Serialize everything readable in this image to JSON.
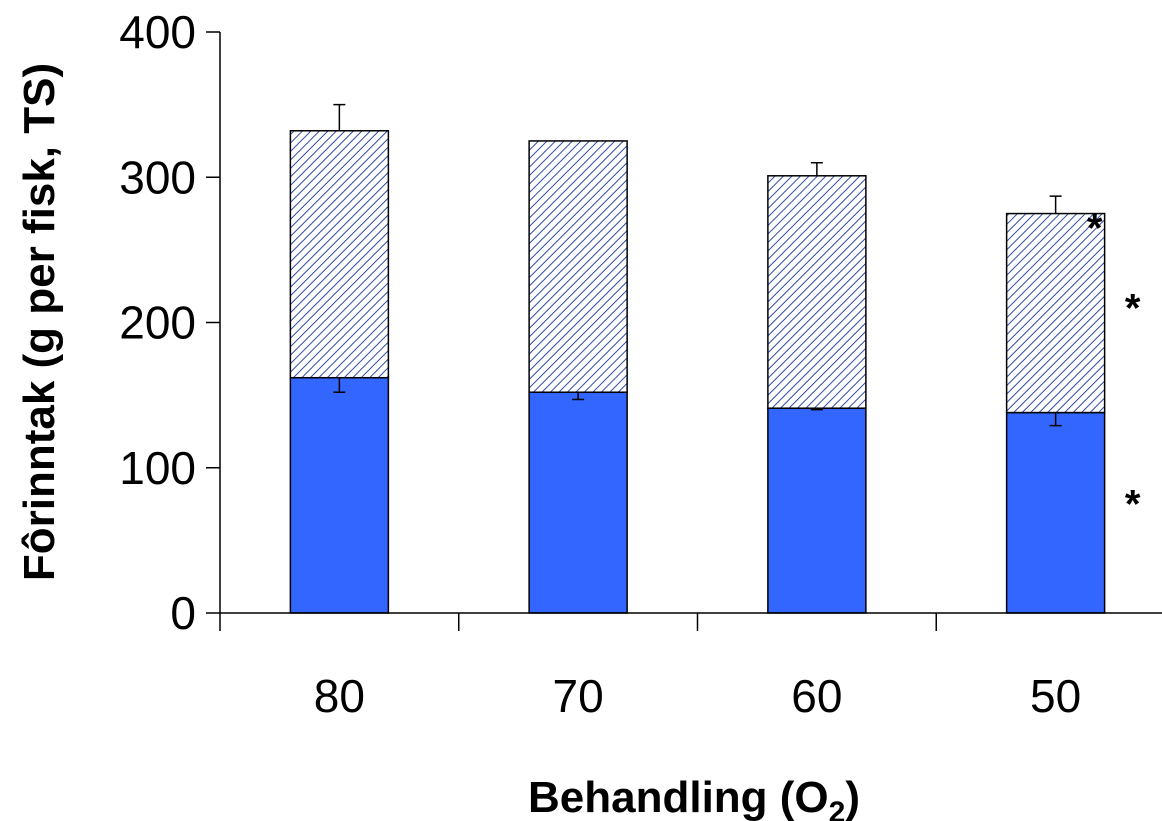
{
  "chart_data": {
    "type": "bar",
    "stacked": true,
    "categories": [
      "80",
      "70",
      "60",
      "50"
    ],
    "series": [
      {
        "values": [
          162,
          152,
          141,
          138
        ],
        "error_plus": [
          0,
          0,
          0,
          0
        ],
        "error_minus": [
          10,
          5,
          1,
          9
        ],
        "fill": "#3366ff",
        "pattern": "solid"
      },
      {
        "values": [
          170,
          173,
          160,
          137
        ],
        "error_plus": [
          18,
          0,
          9,
          12
        ],
        "error_minus": [
          0,
          0,
          0,
          0
        ],
        "fill": "#ffffff",
        "pattern": "diagonal-hatch",
        "hatch_color": "#2e4aa8"
      }
    ],
    "significance_marks": [
      {
        "category": "50",
        "value": 275,
        "label": "*"
      },
      {
        "category": "50",
        "value": 220,
        "label": "*"
      },
      {
        "category": "50",
        "value": 85,
        "label": "*"
      }
    ],
    "ylim": [
      0,
      400
    ],
    "yticks": [
      "0",
      "100",
      "200",
      "300",
      "400"
    ],
    "ylabel": "Fôrinntak (g per fisk, TS)",
    "xlabel": "Behandling (O",
    "xlabel_subscript": "2",
    "xlabel_close": ")",
    "grid": false,
    "legend": "none"
  }
}
